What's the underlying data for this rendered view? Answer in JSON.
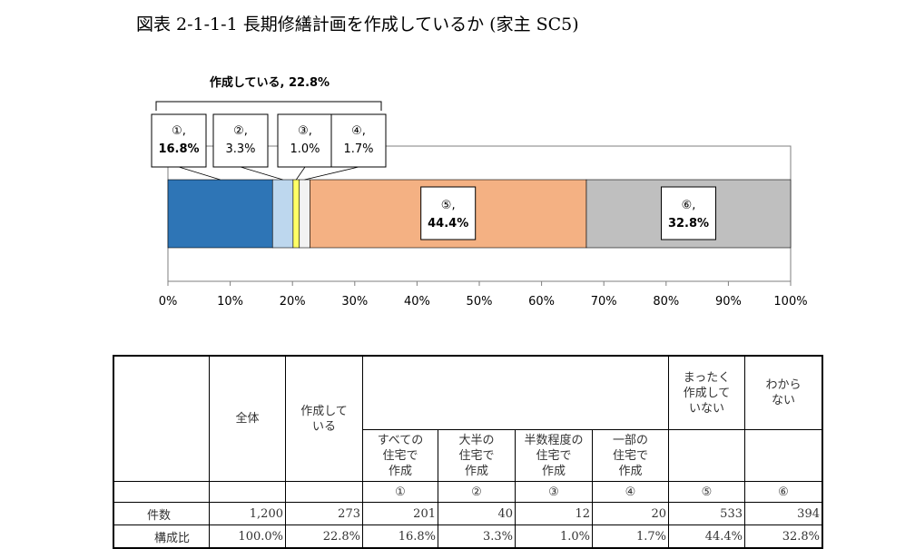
{
  "title": "図表 2-1-1-1  長期修繕計画を作成しているか (家主 SC5)",
  "chart_data": {
    "type": "bar",
    "orientation": "horizontal-stacked",
    "xlim": [
      0,
      100
    ],
    "ticks": [
      "0%",
      "10%",
      "20%",
      "30%",
      "40%",
      "50%",
      "60%",
      "70%",
      "80%",
      "90%",
      "100%"
    ],
    "tick_values": [
      0,
      10,
      20,
      30,
      40,
      50,
      60,
      70,
      80,
      90,
      100
    ],
    "group_label": "作成している, 22.8%",
    "segments": [
      {
        "label": "①,",
        "value": 16.8,
        "value_text": "16.8%",
        "color": "#2e75b6"
      },
      {
        "label": "②,",
        "value": 3.3,
        "value_text": "3.3%",
        "color": "#bdd7ee"
      },
      {
        "label": "③,",
        "value": 1.0,
        "value_text": "1.0%",
        "color": "#ffff66"
      },
      {
        "label": "④,",
        "value": 1.7,
        "value_text": "1.7%",
        "color": "#f2f2f2"
      },
      {
        "label": "⑤,",
        "value": 44.4,
        "value_text": "44.4%",
        "color": "#f4b183"
      },
      {
        "label": "⑥,",
        "value": 32.8,
        "value_text": "32.8%",
        "color": "#bfbfbf"
      }
    ]
  },
  "table": {
    "headers": [
      "全体",
      "作成して\nいる",
      "すべての\n住宅で\n作成",
      "大半の\n住宅で\n作成",
      "半数程度の\n住宅で\n作成",
      "一部の\n住宅で\n作成",
      "まったく\n作成して\nいない",
      "わから\nない"
    ],
    "circled": [
      "①",
      "②",
      "③",
      "④",
      "⑤",
      "⑥"
    ],
    "rows": [
      {
        "label": "件数",
        "values": [
          "1,200",
          "273",
          "201",
          "40",
          "12",
          "20",
          "533",
          "394"
        ]
      },
      {
        "label": "構成比",
        "values": [
          "100.0%",
          "22.8%",
          "16.8%",
          "3.3%",
          "1.0%",
          "1.7%",
          "44.4%",
          "32.8%"
        ]
      }
    ]
  }
}
